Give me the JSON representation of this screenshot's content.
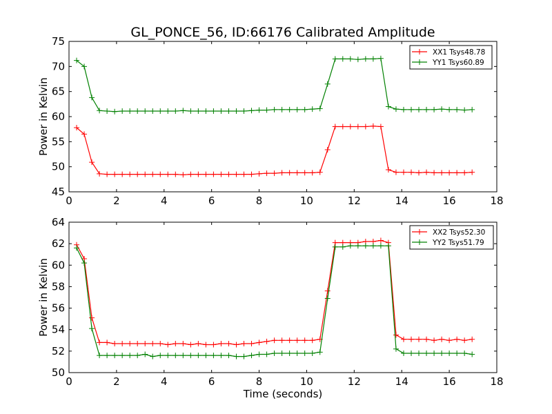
{
  "title": "GL_PONCE_56, ID:66176 Calibrated Amplitude",
  "chart_data": [
    {
      "type": "line",
      "ylabel": "Power in Kelvin",
      "xlabel": "",
      "xlim": [
        0,
        18
      ],
      "ylim": [
        45,
        75
      ],
      "x_ticks": [
        "0",
        "2",
        "4",
        "6",
        "8",
        "10",
        "12",
        "14",
        "16",
        "18"
      ],
      "y_ticks": [
        "45",
        "50",
        "55",
        "60",
        "65",
        "70",
        "75"
      ],
      "legend_placement": "top-right",
      "x": [
        0.32,
        0.64,
        0.96,
        1.28,
        1.6,
        1.92,
        2.24,
        2.56,
        2.88,
        3.2,
        3.52,
        3.84,
        4.16,
        4.48,
        4.8,
        5.12,
        5.44,
        5.76,
        6.08,
        6.4,
        6.72,
        7.04,
        7.36,
        7.68,
        8.0,
        8.32,
        8.64,
        8.96,
        9.28,
        9.6,
        9.92,
        10.24,
        10.56,
        10.88,
        11.2,
        11.52,
        11.84,
        12.16,
        12.48,
        12.8,
        13.12,
        13.44,
        13.76,
        14.08,
        14.4,
        14.72,
        15.04,
        15.36,
        15.68,
        16.0,
        16.32,
        16.64,
        16.96
      ],
      "series": [
        {
          "name": "XX1 Tsys48.78",
          "color": "#ff0000",
          "values": [
            57.8,
            56.5,
            50.9,
            48.6,
            48.5,
            48.5,
            48.5,
            48.5,
            48.5,
            48.5,
            48.5,
            48.5,
            48.5,
            48.5,
            48.4,
            48.5,
            48.5,
            48.5,
            48.5,
            48.5,
            48.5,
            48.5,
            48.5,
            48.5,
            48.6,
            48.7,
            48.7,
            48.8,
            48.8,
            48.8,
            48.8,
            48.8,
            48.9,
            53.4,
            58.0,
            58.0,
            58.0,
            58.0,
            58.0,
            58.1,
            58.0,
            49.4,
            48.9,
            48.9,
            48.9,
            48.8,
            48.9,
            48.8,
            48.8,
            48.8,
            48.8,
            48.8,
            48.9
          ]
        },
        {
          "name": "YY1 Tsys60.89",
          "color": "#008000",
          "values": [
            71.2,
            70.0,
            63.8,
            61.2,
            61.1,
            61.0,
            61.1,
            61.1,
            61.1,
            61.1,
            61.1,
            61.1,
            61.1,
            61.1,
            61.2,
            61.1,
            61.1,
            61.1,
            61.1,
            61.1,
            61.1,
            61.1,
            61.1,
            61.2,
            61.3,
            61.3,
            61.4,
            61.4,
            61.4,
            61.4,
            61.4,
            61.5,
            61.6,
            66.5,
            71.5,
            71.5,
            71.5,
            71.4,
            71.5,
            71.5,
            71.6,
            62.0,
            61.5,
            61.4,
            61.4,
            61.4,
            61.4,
            61.4,
            61.5,
            61.4,
            61.4,
            61.3,
            61.4
          ]
        }
      ]
    },
    {
      "type": "line",
      "ylabel": "Power in Kelvin",
      "xlabel": "Time (seconds)",
      "xlim": [
        0,
        18
      ],
      "ylim": [
        50,
        64
      ],
      "x_ticks": [
        "0",
        "2",
        "4",
        "6",
        "8",
        "10",
        "12",
        "14",
        "16",
        "18"
      ],
      "y_ticks": [
        "50",
        "52",
        "54",
        "56",
        "58",
        "60",
        "62",
        "64"
      ],
      "legend_placement": "top-right",
      "x": [
        0.32,
        0.64,
        0.96,
        1.28,
        1.6,
        1.92,
        2.24,
        2.56,
        2.88,
        3.2,
        3.52,
        3.84,
        4.16,
        4.48,
        4.8,
        5.12,
        5.44,
        5.76,
        6.08,
        6.4,
        6.72,
        7.04,
        7.36,
        7.68,
        8.0,
        8.32,
        8.64,
        8.96,
        9.28,
        9.6,
        9.92,
        10.24,
        10.56,
        10.88,
        11.2,
        11.52,
        11.84,
        12.16,
        12.48,
        12.8,
        13.12,
        13.44,
        13.76,
        14.08,
        14.4,
        14.72,
        15.04,
        15.36,
        15.68,
        16.0,
        16.32,
        16.64,
        16.96
      ],
      "series": [
        {
          "name": "XX2 Tsys52.30",
          "color": "#ff0000",
          "values": [
            61.9,
            60.6,
            55.1,
            52.8,
            52.8,
            52.7,
            52.7,
            52.7,
            52.7,
            52.7,
            52.7,
            52.7,
            52.6,
            52.7,
            52.7,
            52.6,
            52.7,
            52.6,
            52.6,
            52.7,
            52.7,
            52.6,
            52.7,
            52.7,
            52.8,
            52.9,
            53.0,
            53.0,
            53.0,
            53.0,
            53.0,
            53.0,
            53.1,
            57.6,
            62.1,
            62.1,
            62.1,
            62.1,
            62.2,
            62.2,
            62.3,
            62.1,
            53.5,
            53.1,
            53.1,
            53.1,
            53.1,
            53.0,
            53.1,
            53.0,
            53.1,
            53.0,
            53.1
          ]
        },
        {
          "name": "YY2 Tsys51.79",
          "color": "#008000",
          "values": [
            61.6,
            60.2,
            54.1,
            51.6,
            51.6,
            51.6,
            51.6,
            51.6,
            51.6,
            51.7,
            51.5,
            51.6,
            51.6,
            51.6,
            51.6,
            51.6,
            51.6,
            51.6,
            51.6,
            51.6,
            51.6,
            51.5,
            51.5,
            51.6,
            51.7,
            51.7,
            51.8,
            51.8,
            51.8,
            51.8,
            51.8,
            51.8,
            51.9,
            56.9,
            61.7,
            61.7,
            61.8,
            61.8,
            61.8,
            61.8,
            61.8,
            61.8,
            52.2,
            51.8,
            51.8,
            51.8,
            51.8,
            51.8,
            51.8,
            51.8,
            51.8,
            51.8,
            51.7
          ]
        }
      ]
    }
  ]
}
